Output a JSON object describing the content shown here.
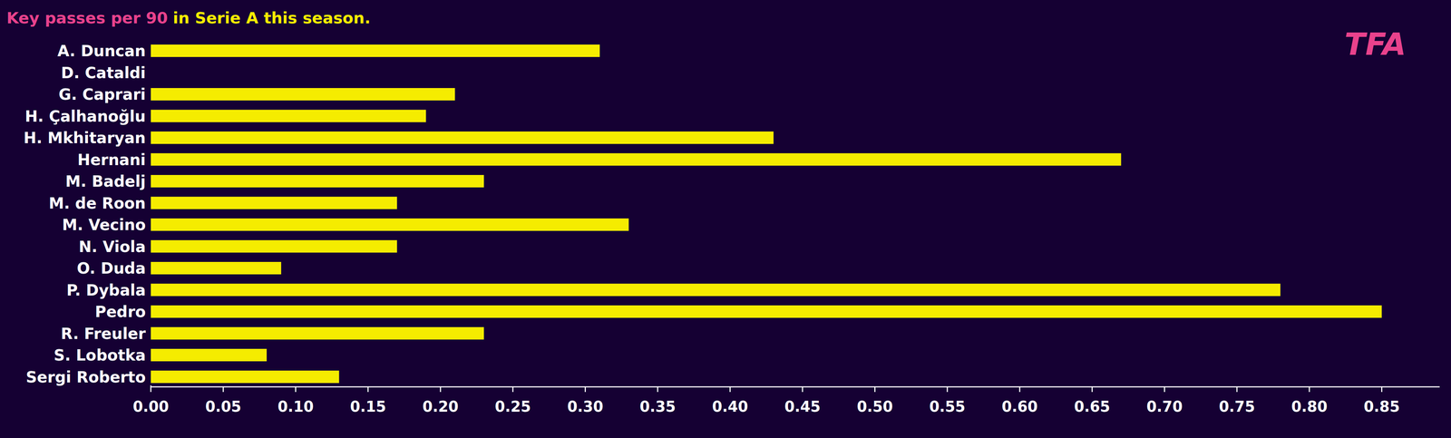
{
  "chart_data": {
    "type": "bar",
    "orientation": "horizontal",
    "title": "Key passes per 90",
    "subtitle": "in Serie A this season.",
    "annotations": [
      "TFA"
    ],
    "categories": [
      "A. Duncan",
      "D. Cataldi",
      "G. Caprari",
      "H. Çalhanoğlu",
      "H. Mkhitaryan",
      "Hernani",
      "M. Badelj",
      "M. de Roon",
      "M. Vecino",
      "N. Viola",
      "O. Duda",
      "P. Dybala",
      "Pedro",
      "R. Freuler",
      "S. Lobotka",
      "Sergi Roberto"
    ],
    "values": [
      0.31,
      0,
      0.21,
      0.19,
      0.43,
      0.67,
      0.23,
      0.17,
      0.33,
      0.17,
      0.09,
      0.78,
      0.85,
      0.23,
      0.08,
      0.13
    ],
    "color": "#f5ec00",
    "xlim": [
      0,
      0.89
    ],
    "xticks": [
      {
        "value": 0,
        "label": "0.00"
      },
      {
        "value": 0.05,
        "label": "0.05"
      },
      {
        "value": 0.1,
        "label": "0.10"
      },
      {
        "value": 0.15,
        "label": "0.15"
      },
      {
        "value": 0.2,
        "label": "0.20"
      },
      {
        "value": 0.25,
        "label": "0.25"
      },
      {
        "value": 0.3,
        "label": "0.30"
      },
      {
        "value": 0.35,
        "label": "0.35"
      },
      {
        "value": 0.4,
        "label": "0.40"
      },
      {
        "value": 0.45,
        "label": "0.45"
      },
      {
        "value": 0.5,
        "label": "0.50"
      },
      {
        "value": 0.55,
        "label": "0.55"
      },
      {
        "value": 0.6,
        "label": "0.60"
      },
      {
        "value": 0.65,
        "label": "0.65"
      },
      {
        "value": 0.7,
        "label": "0.70"
      },
      {
        "value": 0.75,
        "label": "0.75"
      },
      {
        "value": 0.8,
        "label": "0.80"
      },
      {
        "value": 0.85,
        "label": "0.85"
      }
    ],
    "grid": false
  }
}
